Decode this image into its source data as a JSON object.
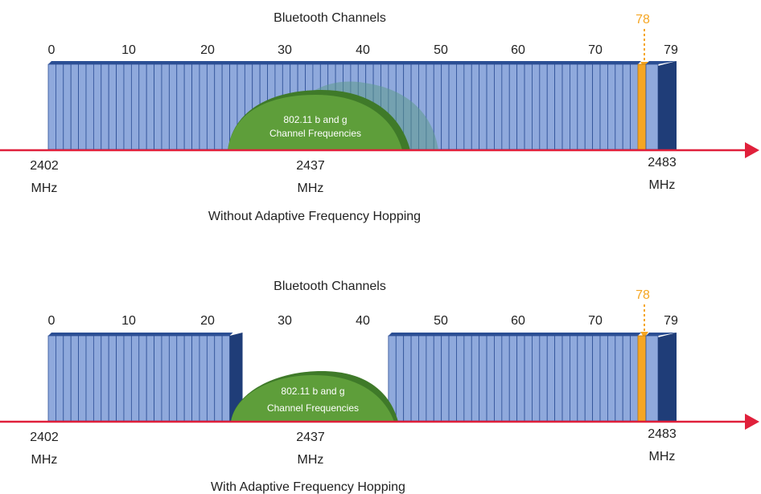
{
  "colors": {
    "channel_fill": "#8fa9dc",
    "channel_stroke": "#2d4f96",
    "channel_top": "#2b4f94",
    "channel_side": "#1f3d78",
    "highlight_channel": "#f5a623",
    "axis": "#e0203b",
    "wifi_fill": "#5e9e3a",
    "wifi_shadow": "#3f7a29",
    "wifi_ghost": "#5f9a8c",
    "text": "#222222"
  },
  "panels": [
    {
      "title": "Bluetooth Channels",
      "channel_ticks": [
        "0",
        "10",
        "20",
        "30",
        "40",
        "50",
        "60",
        "70"
      ],
      "last_channel_label": "79",
      "highlight_label": "78",
      "wifi_label_line1": "802.11 b and g",
      "wifi_label_line2": "Channel Frequencies",
      "freq_start_value": "2402",
      "freq_mid_value": "2437",
      "freq_end_value": "2483",
      "freq_unit": "MHz",
      "caption": "Without Adaptive Frequency Hopping",
      "adaptive": false
    },
    {
      "title": "Bluetooth Channels",
      "channel_ticks": [
        "0",
        "10",
        "20",
        "30",
        "40",
        "50",
        "60",
        "70"
      ],
      "last_channel_label": "79",
      "highlight_label": "78",
      "wifi_label_line1": "802.11 b and g",
      "wifi_label_line2": "Channel Frequencies",
      "freq_start_value": "2402",
      "freq_mid_value": "2437",
      "freq_end_value": "2483",
      "freq_unit": "MHz",
      "caption": "With Adaptive Frequency Hopping",
      "adaptive": true
    }
  ]
}
